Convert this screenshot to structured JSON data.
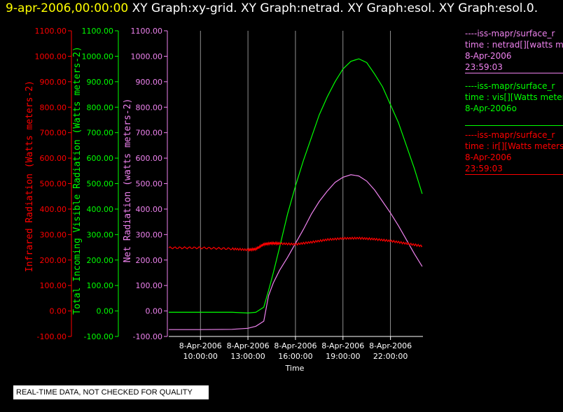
{
  "title": {
    "date": "9-apr-2006,00:00:00",
    "graphs": "XY Graph:xy-grid.  XY Graph:netrad.  XY Graph:esol.  XY Graph:esol.0."
  },
  "colors": {
    "red": "#ff0000",
    "green": "#00ff00",
    "violet": "#ee82ee",
    "grid": "#ffffff",
    "axis": "#ffffff"
  },
  "legend": [
    {
      "line": "----iss-mapr/surface_r",
      "field": "time : netrad[][watts me",
      "date": "8-Apr-2006",
      "time": "23:59:03",
      "color": "#ee82ee"
    },
    {
      "line": "----iss-mapr/surface_r",
      "field": "time : vis[][Watts meter",
      "date": "8-Apr-2006o",
      "time": "",
      "color": "#00ff00"
    },
    {
      "line": "----iss-mapr/surface_r",
      "field": "time : ir[][Watts meters",
      "date": "8-Apr-2006",
      "time": "23:59:03",
      "color": "#ff0000"
    }
  ],
  "notice": "REAL-TIME DATA, NOT CHECKED FOR QUALITY",
  "chart_data": {
    "type": "line",
    "xlabel": "Time",
    "xlim": [
      8,
      24.05
    ],
    "x_ticks": [
      {
        "value": 10,
        "line1": "8-Apr-2006",
        "line2": "10:00:00"
      },
      {
        "value": 13,
        "line1": "8-Apr-2006",
        "line2": "13:00:00"
      },
      {
        "value": 16,
        "line1": "8-Apr-2006",
        "line2": "16:00:00"
      },
      {
        "value": 19,
        "line1": "8-Apr-2006",
        "line2": "19:00:00"
      },
      {
        "value": 22,
        "line1": "8-Apr-2006",
        "line2": "22:00:00"
      }
    ],
    "grid": "vertical",
    "ylim": [
      -100,
      1100
    ],
    "y_ticks": [
      "-100.00",
      "0.00",
      "100.00",
      "200.00",
      "300.00",
      "400.00",
      "500.00",
      "600.00",
      "700.00",
      "800.00",
      "900.00",
      "1000.00",
      "1100.00"
    ],
    "axes": [
      {
        "label": "Infrared Radiation (Watts meters-2)",
        "color": "#ff0000"
      },
      {
        "label": "Total Incoming Visible Radiation (Watts meters-2)",
        "color": "#00ff00"
      },
      {
        "label": "Net Radiation (watts meters-2)",
        "color": "#ee82ee"
      }
    ],
    "series": [
      {
        "axis": 2,
        "color": "#00ff00",
        "x": [
          8,
          10,
          12,
          13,
          13.5,
          14,
          14.3,
          14.6,
          15,
          15.5,
          16,
          16.5,
          17,
          17.5,
          18,
          18.5,
          19,
          19.5,
          20,
          20.5,
          21,
          21.5,
          22,
          22.5,
          23,
          23.5,
          24
        ],
        "y": [
          -5,
          -5,
          -5,
          -8,
          -5,
          15,
          80,
          150,
          250,
          380,
          490,
          590,
          680,
          770,
          840,
          900,
          950,
          980,
          990,
          975,
          930,
          880,
          810,
          740,
          650,
          560,
          460
        ]
      },
      {
        "axis": 3,
        "color": "#ee82ee",
        "x": [
          8,
          10,
          12,
          13,
          13.5,
          14,
          14.3,
          14.6,
          15,
          15.5,
          16,
          16.5,
          17,
          17.5,
          18,
          18.5,
          19,
          19.5,
          20,
          20.5,
          21,
          21.5,
          22,
          22.5,
          23,
          23.5,
          24
        ],
        "y": [
          -73,
          -73,
          -72,
          -68,
          -60,
          -40,
          60,
          110,
          160,
          210,
          265,
          320,
          380,
          430,
          470,
          505,
          525,
          535,
          530,
          510,
          475,
          430,
          385,
          335,
          280,
          225,
          175
        ]
      },
      {
        "axis": 1,
        "color": "#ff0000",
        "x": [
          8,
          10,
          12,
          13,
          13.5,
          14,
          14.5,
          15,
          16,
          17,
          18,
          19,
          20,
          21,
          22,
          23,
          24
        ],
        "y": [
          248,
          248,
          244,
          240,
          243,
          262,
          266,
          265,
          262,
          270,
          280,
          285,
          286,
          282,
          275,
          265,
          255
        ]
      }
    ]
  }
}
